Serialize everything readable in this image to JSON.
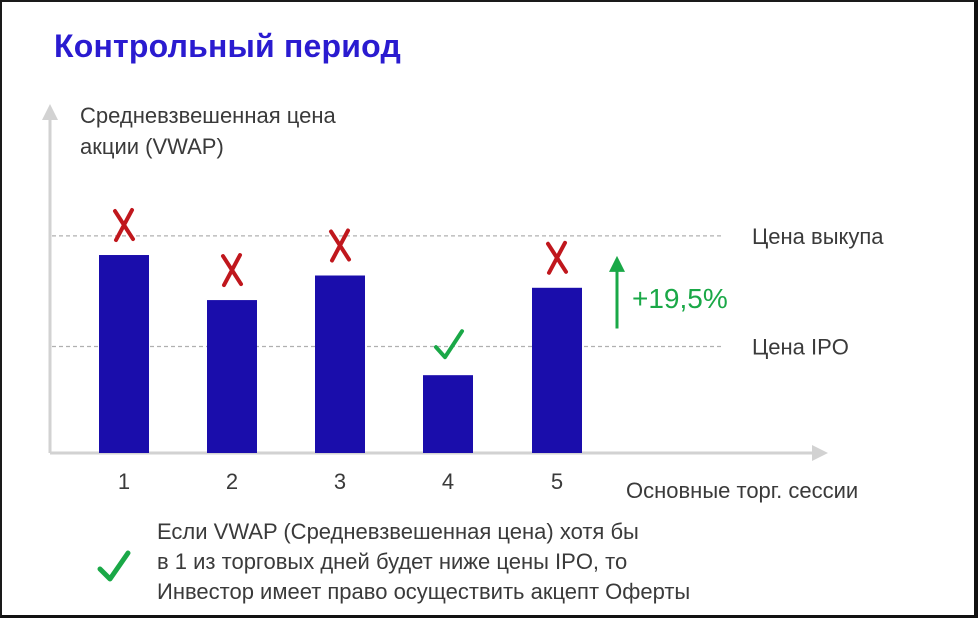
{
  "title": "Контрольный период",
  "chart_data": {
    "type": "bar",
    "ylabel_lines": [
      "Средневзвешенная цена",
      "акции (VWAP)"
    ],
    "xlabel": "Основные торг. сессии",
    "categories": [
      "1",
      "2",
      "3",
      "4",
      "5"
    ],
    "values": [
      1.45,
      1.12,
      1.3,
      0.57,
      1.21
    ],
    "markers": [
      "cross",
      "cross",
      "cross",
      "check",
      "cross"
    ],
    "reference_lines": [
      {
        "label": "Цена выкупа",
        "value": 1.59
      },
      {
        "label": "Цена IPO",
        "value": 0.78
      }
    ],
    "delta_annotation": "+19,5%",
    "ylim": [
      0,
      2.6
    ],
    "colors": {
      "bar": "#1a0dab",
      "cross": "#c0171d",
      "check": "#1aa847",
      "reference": "#b0b0b0",
      "axis": "#d2d2d2",
      "delta": "#1aa847"
    }
  },
  "note": {
    "icon": "check-icon",
    "lines": [
      "Если VWAP (Средневзвешенная цена) хотя бы",
      "в 1 из торговых дней будет ниже цены IPO, то",
      "Инвестор имеет право осуществить акцепт Оферты"
    ]
  }
}
